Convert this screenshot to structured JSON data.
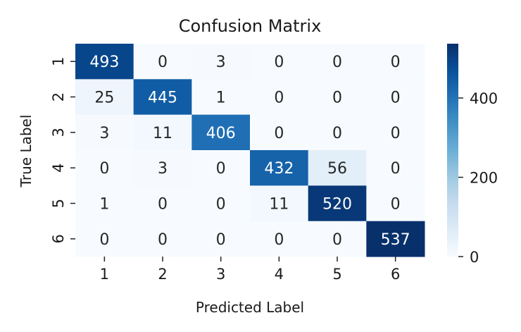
{
  "chart_data": {
    "type": "heatmap",
    "title": "Confusion Matrix",
    "xlabel": "Predicted Label",
    "ylabel": "True Label",
    "x_categories": [
      "1",
      "2",
      "3",
      "4",
      "5",
      "6"
    ],
    "y_categories": [
      "1",
      "2",
      "3",
      "4",
      "5",
      "6"
    ],
    "values": [
      [
        493,
        0,
        3,
        0,
        0,
        0
      ],
      [
        25,
        445,
        1,
        0,
        0,
        0
      ],
      [
        3,
        11,
        406,
        0,
        0,
        0
      ],
      [
        0,
        3,
        0,
        432,
        56,
        0
      ],
      [
        1,
        0,
        0,
        11,
        520,
        0
      ],
      [
        0,
        0,
        0,
        0,
        0,
        537
      ]
    ],
    "colormap": "Blues",
    "value_range": [
      0,
      537
    ],
    "colorbar_ticks": [
      0,
      200,
      400
    ],
    "colorbar_tick_labels": [
      "0",
      "200",
      "400"
    ],
    "grid": false
  }
}
